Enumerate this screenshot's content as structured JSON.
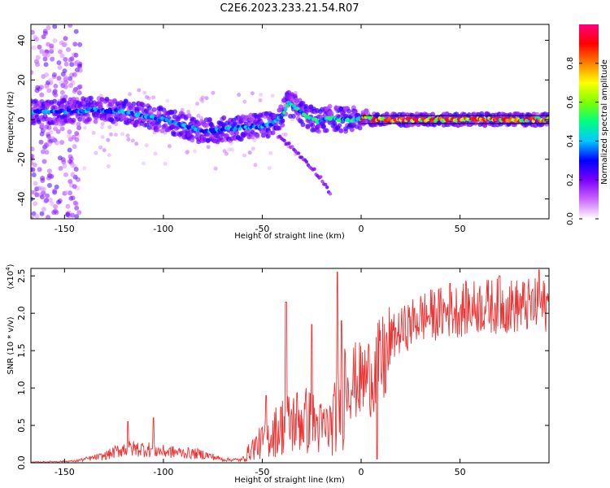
{
  "title": "C2E6.2023.233.21.54.R07",
  "chart_data": [
    {
      "type": "heatmap",
      "xlabel": "Height of straight line (km)",
      "ylabel": "Frequency (Hz)",
      "xlim": [
        -167,
        95
      ],
      "ylim": [
        -50,
        48
      ],
      "x_ticks": [
        -150,
        -100,
        -50,
        0,
        50
      ],
      "y_ticks": [
        -40,
        -20,
        0,
        20,
        40
      ],
      "colorbar": {
        "label": "Normalized spectral amplitude",
        "range": [
          0.0,
          1.0
        ],
        "ticks": [
          "0.0",
          "0.2",
          "0.4",
          "0.6",
          "0.8"
        ],
        "colors": [
          "#ffffff",
          "#cc66ff",
          "#7a00ff",
          "#0000ff",
          "#00c8ff",
          "#00ff80",
          "#80ff00",
          "#ffff00",
          "#ff8000",
          "#ff0000",
          "#ff0080"
        ]
      },
      "ridge": {
        "x": [
          -167,
          -150,
          -135,
          -120,
          -110,
          -100,
          -90,
          -80,
          -70,
          -60,
          -50,
          -45,
          -40,
          -37,
          -33,
          -28,
          -22,
          -15,
          -10,
          -5,
          0,
          3,
          5,
          10,
          20,
          40,
          60,
          80,
          95
        ],
        "y": [
          4,
          4,
          5,
          4,
          2,
          0,
          -3,
          -6,
          -5,
          -4,
          -3,
          -2,
          2,
          8,
          6,
          2,
          -1,
          1,
          0,
          0,
          0,
          2,
          0,
          0,
          0,
          0,
          0,
          0,
          0
        ]
      },
      "branch": {
        "x": [
          -42,
          -35,
          -30,
          -25,
          -20,
          -15
        ],
        "y": [
          -8,
          -14,
          -19,
          -24,
          -30,
          -38
        ]
      },
      "reference_line_y": [
        2,
        -2
      ]
    },
    {
      "type": "line",
      "xlabel": "Height of straight line (km)",
      "ylabel": "SNR (10 * v/v)",
      "scale_label": "(x10",
      "scale_exp": "4",
      "scale_close": ")",
      "xlim": [
        -167,
        95
      ],
      "ylim": [
        0,
        2.6
      ],
      "x_ticks": [
        -150,
        -100,
        -50,
        0,
        50
      ],
      "y_ticks": [
        "0.0",
        "0.5",
        "1.0",
        "1.5",
        "2.0",
        "2.5"
      ],
      "line_color": "#ee3333",
      "envelope": {
        "x": [
          -167,
          -145,
          -130,
          -120,
          -110,
          -100,
          -90,
          -80,
          -70,
          -60,
          -55,
          -48,
          -40,
          -35,
          -30,
          -25,
          -20,
          -15,
          -10,
          -8,
          -5,
          0,
          5,
          10,
          15,
          20,
          25,
          30,
          40,
          50,
          60,
          70,
          80,
          95
        ],
        "y": [
          0.01,
          0.03,
          0.12,
          0.25,
          0.25,
          0.2,
          0.18,
          0.15,
          0.06,
          0.05,
          0.22,
          0.35,
          0.55,
          0.6,
          0.65,
          0.6,
          0.5,
          0.55,
          0.9,
          1.3,
          1.25,
          1.25,
          1.35,
          1.5,
          1.7,
          1.8,
          1.9,
          2.0,
          2.05,
          2.1,
          2.15,
          2.15,
          2.15,
          2.15
        ]
      },
      "peaks": {
        "x": [
          -118,
          -105,
          -48,
          -38,
          -25,
          -12,
          -10,
          8,
          45,
          70,
          90
        ],
        "y": [
          0.55,
          0.6,
          0.9,
          2.15,
          1.85,
          2.55,
          1.9,
          0.05,
          2.4,
          2.5,
          2.58
        ]
      }
    }
  ]
}
